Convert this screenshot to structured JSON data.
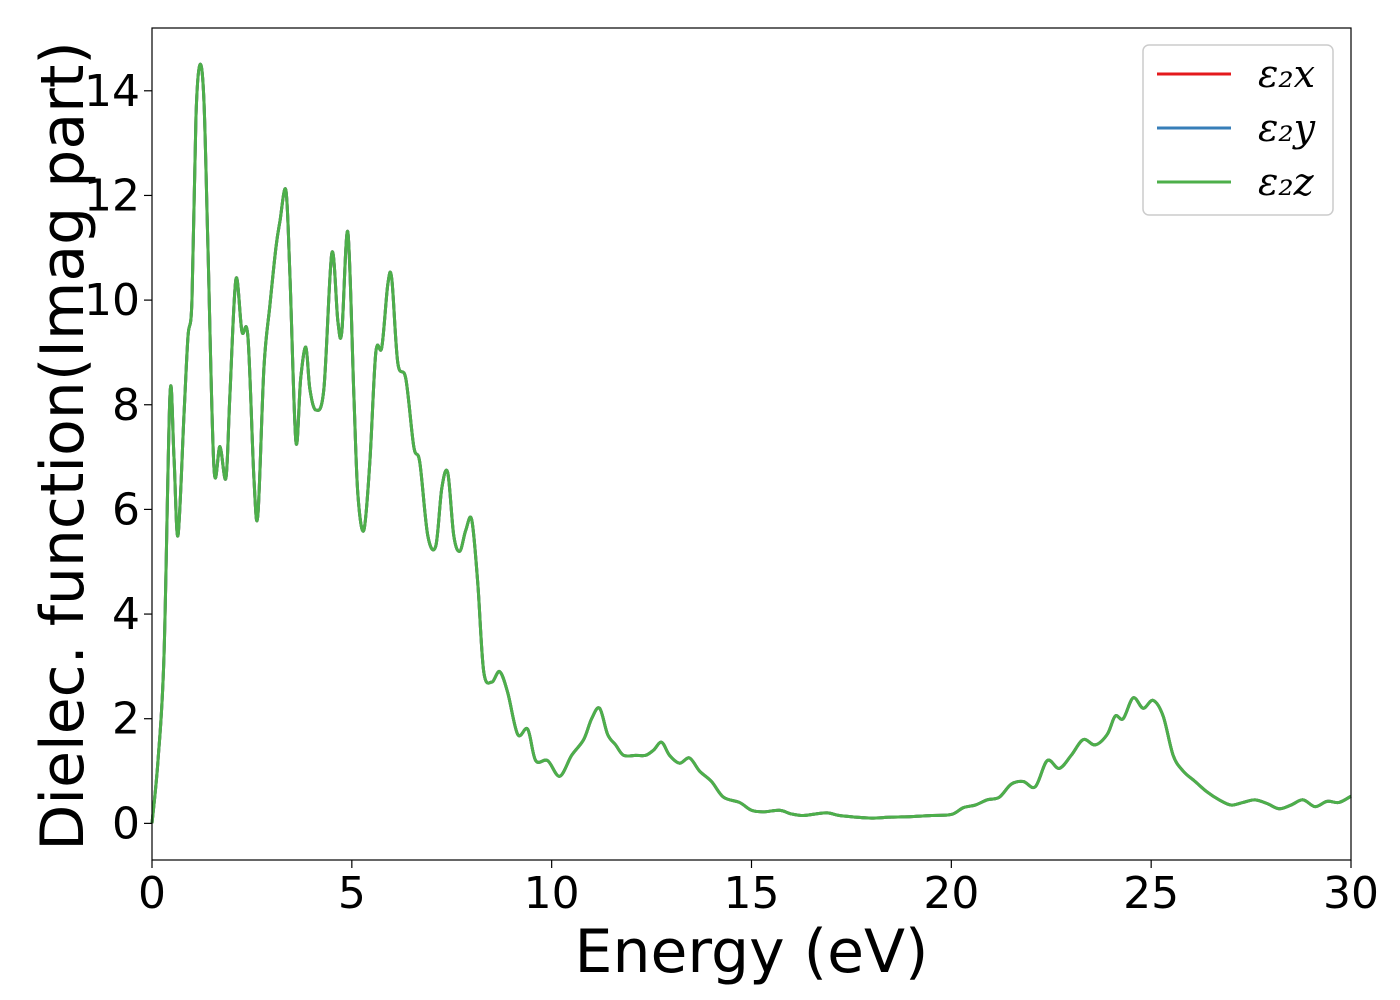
{
  "chart_data": {
    "type": "line",
    "xlabel": "Energy (eV)",
    "ylabel": "Dielec. function(Imag part)",
    "xlim": [
      0,
      30
    ],
    "ylim": [
      -0.7,
      15.2
    ],
    "xticks": [
      0,
      5,
      10,
      15,
      20,
      25,
      30
    ],
    "xtick_labels": [
      "0",
      "5",
      "10",
      "15",
      "20",
      "25",
      "30"
    ],
    "yticks": [
      0,
      2,
      4,
      6,
      8,
      10,
      12,
      14
    ],
    "ytick_labels": [
      "0",
      "2",
      "4",
      "6",
      "8",
      "10",
      "12",
      "14"
    ],
    "grid": false,
    "legend_position": "top-right",
    "x": [
      0,
      0.15,
      0.3,
      0.45,
      0.55,
      0.65,
      0.8,
      0.9,
      1.0,
      1.1,
      1.2,
      1.3,
      1.4,
      1.55,
      1.7,
      1.85,
      1.95,
      2.1,
      2.25,
      2.4,
      2.55,
      2.65,
      2.8,
      2.95,
      3.1,
      3.2,
      3.35,
      3.45,
      3.6,
      3.72,
      3.85,
      3.95,
      4.1,
      4.3,
      4.5,
      4.65,
      4.75,
      4.9,
      5.05,
      5.15,
      5.3,
      5.45,
      5.6,
      5.75,
      5.9,
      6.0,
      6.15,
      6.35,
      6.55,
      6.7,
      6.9,
      7.1,
      7.25,
      7.4,
      7.55,
      7.7,
      7.85,
      8.0,
      8.15,
      8.3,
      8.5,
      8.7,
      8.9,
      9.15,
      9.4,
      9.6,
      9.9,
      10.2,
      10.5,
      10.8,
      11.0,
      11.2,
      11.4,
      11.6,
      11.8,
      12.1,
      12.35,
      12.55,
      12.75,
      12.95,
      13.2,
      13.45,
      13.7,
      14.0,
      14.3,
      14.7,
      15.0,
      15.3,
      15.7,
      16.0,
      16.3,
      16.6,
      16.9,
      17.2,
      17.6,
      18.0,
      18.5,
      19.0,
      19.5,
      20.0,
      20.3,
      20.6,
      20.9,
      21.2,
      21.5,
      21.8,
      22.1,
      22.4,
      22.7,
      23.0,
      23.3,
      23.6,
      23.9,
      24.1,
      24.3,
      24.55,
      24.8,
      25.05,
      25.3,
      25.55,
      25.8,
      26.1,
      26.4,
      26.7,
      27.0,
      27.3,
      27.6,
      27.9,
      28.2,
      28.5,
      28.8,
      29.1,
      29.4,
      29.7,
      30.0
    ],
    "series": [
      {
        "name": "ε₂x",
        "color": "#e41a1c",
        "values": [
          0,
          1.2,
          3.2,
          8.2,
          7.0,
          5.5,
          7.8,
          9.3,
          10.0,
          13.5,
          14.5,
          13.8,
          11.0,
          6.8,
          7.2,
          6.6,
          8.2,
          10.4,
          9.4,
          9.3,
          6.6,
          5.9,
          8.7,
          9.9,
          11.0,
          11.5,
          12.1,
          10.5,
          7.3,
          8.5,
          9.1,
          8.3,
          7.9,
          8.3,
          10.9,
          9.6,
          9.4,
          11.3,
          8.2,
          6.3,
          5.6,
          6.9,
          9.0,
          9.1,
          10.3,
          10.4,
          8.8,
          8.5,
          7.2,
          6.9,
          5.5,
          5.3,
          6.4,
          6.7,
          5.5,
          5.2,
          5.6,
          5.8,
          4.6,
          2.9,
          2.7,
          2.9,
          2.5,
          1.7,
          1.8,
          1.2,
          1.2,
          0.9,
          1.3,
          1.6,
          2.0,
          2.2,
          1.7,
          1.5,
          1.3,
          1.3,
          1.3,
          1.4,
          1.55,
          1.3,
          1.15,
          1.25,
          1.0,
          0.8,
          0.5,
          0.4,
          0.25,
          0.22,
          0.25,
          0.18,
          0.15,
          0.18,
          0.2,
          0.15,
          0.12,
          0.1,
          0.12,
          0.13,
          0.15,
          0.17,
          0.3,
          0.35,
          0.45,
          0.5,
          0.75,
          0.8,
          0.7,
          1.2,
          1.05,
          1.3,
          1.6,
          1.5,
          1.7,
          2.05,
          2.0,
          2.4,
          2.2,
          2.35,
          2.05,
          1.3,
          1.0,
          0.8,
          0.6,
          0.45,
          0.35,
          0.4,
          0.45,
          0.38,
          0.28,
          0.35,
          0.45,
          0.32,
          0.42,
          0.4,
          0.52
        ]
      },
      {
        "name": "ε₂y",
        "color": "#377eb8",
        "values": [
          0,
          1.2,
          3.2,
          8.2,
          7.0,
          5.5,
          7.8,
          9.3,
          10.0,
          13.5,
          14.5,
          13.8,
          11.0,
          6.8,
          7.2,
          6.6,
          8.2,
          10.4,
          9.4,
          9.3,
          6.6,
          5.9,
          8.7,
          9.9,
          11.0,
          11.5,
          12.1,
          10.5,
          7.3,
          8.5,
          9.1,
          8.3,
          7.9,
          8.3,
          10.9,
          9.6,
          9.4,
          11.3,
          8.2,
          6.3,
          5.6,
          6.9,
          9.0,
          9.1,
          10.3,
          10.4,
          8.8,
          8.5,
          7.2,
          6.9,
          5.5,
          5.3,
          6.4,
          6.7,
          5.5,
          5.2,
          5.6,
          5.8,
          4.6,
          2.9,
          2.7,
          2.9,
          2.5,
          1.7,
          1.8,
          1.2,
          1.2,
          0.9,
          1.3,
          1.6,
          2.0,
          2.2,
          1.7,
          1.5,
          1.3,
          1.3,
          1.3,
          1.4,
          1.55,
          1.3,
          1.15,
          1.25,
          1.0,
          0.8,
          0.5,
          0.4,
          0.25,
          0.22,
          0.25,
          0.18,
          0.15,
          0.18,
          0.2,
          0.15,
          0.12,
          0.1,
          0.12,
          0.13,
          0.15,
          0.17,
          0.3,
          0.35,
          0.45,
          0.5,
          0.75,
          0.8,
          0.7,
          1.2,
          1.05,
          1.3,
          1.6,
          1.5,
          1.7,
          2.05,
          2.0,
          2.4,
          2.2,
          2.35,
          2.05,
          1.3,
          1.0,
          0.8,
          0.6,
          0.45,
          0.35,
          0.4,
          0.45,
          0.38,
          0.28,
          0.35,
          0.45,
          0.32,
          0.42,
          0.4,
          0.52
        ]
      },
      {
        "name": "ε₂z",
        "color": "#4daf4a",
        "values": [
          0,
          1.2,
          3.2,
          8.2,
          7.0,
          5.5,
          7.8,
          9.3,
          10.0,
          13.5,
          14.5,
          13.8,
          11.0,
          6.8,
          7.2,
          6.6,
          8.2,
          10.4,
          9.4,
          9.3,
          6.6,
          5.9,
          8.7,
          9.9,
          11.0,
          11.5,
          12.1,
          10.5,
          7.3,
          8.5,
          9.1,
          8.3,
          7.9,
          8.3,
          10.9,
          9.6,
          9.4,
          11.3,
          8.2,
          6.3,
          5.6,
          6.9,
          9.0,
          9.1,
          10.3,
          10.4,
          8.8,
          8.5,
          7.2,
          6.9,
          5.5,
          5.3,
          6.4,
          6.7,
          5.5,
          5.2,
          5.6,
          5.8,
          4.6,
          2.9,
          2.7,
          2.9,
          2.5,
          1.7,
          1.8,
          1.2,
          1.2,
          0.9,
          1.3,
          1.6,
          2.0,
          2.2,
          1.7,
          1.5,
          1.3,
          1.3,
          1.3,
          1.4,
          1.55,
          1.3,
          1.15,
          1.25,
          1.0,
          0.8,
          0.5,
          0.4,
          0.25,
          0.22,
          0.25,
          0.18,
          0.15,
          0.18,
          0.2,
          0.15,
          0.12,
          0.1,
          0.12,
          0.13,
          0.15,
          0.17,
          0.3,
          0.35,
          0.45,
          0.5,
          0.75,
          0.8,
          0.7,
          1.2,
          1.05,
          1.3,
          1.6,
          1.5,
          1.7,
          2.05,
          2.0,
          2.4,
          2.2,
          2.35,
          2.05,
          1.3,
          1.0,
          0.8,
          0.6,
          0.45,
          0.35,
          0.4,
          0.45,
          0.38,
          0.28,
          0.35,
          0.45,
          0.32,
          0.42,
          0.4,
          0.52
        ]
      }
    ]
  }
}
